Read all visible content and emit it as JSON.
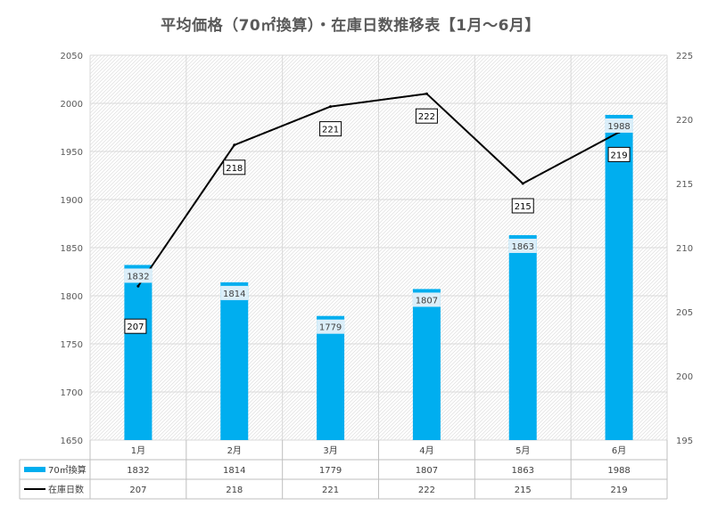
{
  "chart_data": {
    "type": "bar",
    "title": "平均価格（70㎡換算）・在庫日数推移表【1月～6月】",
    "categories": [
      "1月",
      "2月",
      "3月",
      "4月",
      "5月",
      "6月"
    ],
    "series": [
      {
        "name": "70㎡換算",
        "type": "bar",
        "axis": "left",
        "values": [
          1832,
          1814,
          1779,
          1807,
          1863,
          1988
        ],
        "color": "#00AEEF"
      },
      {
        "name": "在庫日数",
        "type": "line",
        "axis": "right",
        "values": [
          207,
          218,
          221,
          222,
          215,
          219
        ],
        "color": "#000000"
      }
    ],
    "y_left": {
      "min": 1650,
      "max": 2050,
      "step": 50,
      "ticks": [
        "1650",
        "1700",
        "1750",
        "1800",
        "1850",
        "1900",
        "1950",
        "2000",
        "2050"
      ]
    },
    "y_right": {
      "min": 195,
      "max": 225,
      "step": 5,
      "ticks": [
        "195",
        "200",
        "205",
        "210",
        "215",
        "220",
        "225"
      ]
    },
    "grid": true,
    "legend": "data-table"
  }
}
